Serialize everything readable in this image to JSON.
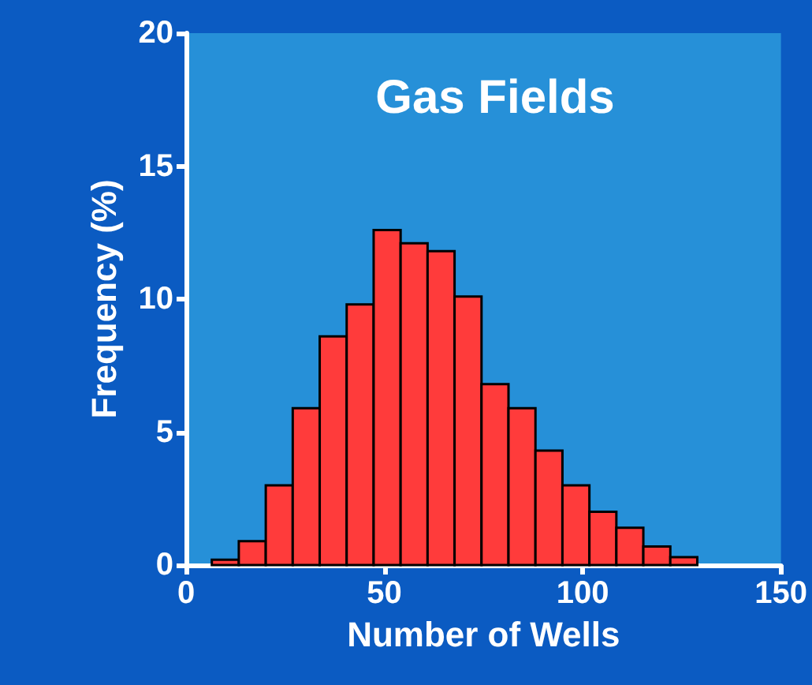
{
  "chart_data": {
    "type": "histogram",
    "title": "Gas Fields",
    "xlabel": "Number of Wells",
    "ylabel": "Frequency (%)",
    "bins": [
      6.5,
      13.3,
      20.1,
      26.9,
      33.7,
      40.5,
      47.3,
      54.1,
      60.9,
      67.7,
      74.5,
      81.3,
      88.1,
      94.9,
      101.7,
      108.5,
      115.3,
      122.1,
      128.9
    ],
    "values": [
      0.2,
      0.9,
      3.0,
      5.9,
      8.6,
      9.8,
      12.6,
      12.1,
      11.8,
      10.1,
      6.8,
      5.9,
      4.3,
      3.0,
      2.0,
      1.4,
      0.7,
      0.3
    ],
    "color": "#ff3b3b",
    "xlim": [
      0,
      150
    ],
    "xticks": [
      0,
      50,
      100,
      150
    ],
    "ylim": [
      0,
      20
    ],
    "yticks": [
      0,
      5,
      10,
      15,
      20
    ],
    "grid": false
  }
}
